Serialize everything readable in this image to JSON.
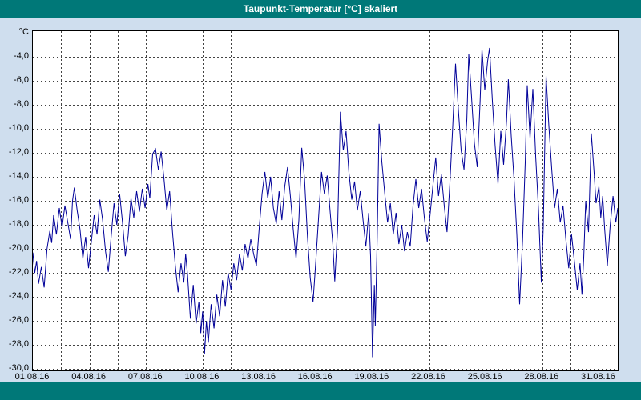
{
  "window": {
    "title": "Taupunkt-Temperatur [°C] skaliert"
  },
  "colors": {
    "titlebar": "#007878",
    "background": "#cfdeee",
    "plot_background": "#ffffff",
    "plot_border": "#000000",
    "grid": "#444444",
    "line": "#000099"
  },
  "chart_data": {
    "type": "line",
    "title": "Taupunkt-Temperatur [°C] skaliert",
    "unit_label": "°C",
    "xlabel": "",
    "ylabel": "°C",
    "grid": "dashed",
    "legend": "none",
    "xlim_days": [
      0,
      31
    ],
    "ylim": [
      -30.1,
      -1.9
    ],
    "x_tick_days": [
      0,
      3,
      6,
      9,
      12,
      15,
      18,
      21,
      24,
      27,
      30
    ],
    "x_tick_labels": [
      "01.08.16",
      "04.08.16",
      "07.08.16",
      "10.08.16",
      "13.08.16",
      "16.08.16",
      "19.08.16",
      "22.08.16",
      "25.08.16",
      "28.08.16",
      "31.08.16"
    ],
    "x_grid_step_days": 1.5,
    "y_tick_values": [
      -4,
      -6,
      -8,
      -10,
      -12,
      -14,
      -16,
      -18,
      -20,
      -22,
      -24,
      -26,
      -28,
      -30
    ],
    "y_tick_labels": [
      "-4,0",
      "-6,0",
      "-8,0",
      "-10,0",
      "-12,0",
      "-14,0",
      "-16,0",
      "-18,0",
      "-20,0",
      "-22,0",
      "-24,0",
      "-26,0",
      "-28,0",
      "-30,0"
    ],
    "series": [
      {
        "name": "Taupunkt-Temperatur",
        "color": "#000099",
        "points": [
          [
            0.0,
            -20.3
          ],
          [
            0.1,
            -22.0
          ],
          [
            0.2,
            -21.0
          ],
          [
            0.3,
            -22.9
          ],
          [
            0.45,
            -21.5
          ],
          [
            0.6,
            -23.2
          ],
          [
            0.75,
            -20.0
          ],
          [
            0.9,
            -18.5
          ],
          [
            1.0,
            -19.5
          ],
          [
            1.1,
            -17.2
          ],
          [
            1.25,
            -18.8
          ],
          [
            1.4,
            -16.6
          ],
          [
            1.55,
            -18.2
          ],
          [
            1.7,
            -16.4
          ],
          [
            1.85,
            -17.8
          ],
          [
            2.0,
            -19.2
          ],
          [
            2.1,
            -16.0
          ],
          [
            2.2,
            -14.9
          ],
          [
            2.35,
            -16.8
          ],
          [
            2.5,
            -18.4
          ],
          [
            2.65,
            -20.8
          ],
          [
            2.8,
            -19.0
          ],
          [
            2.95,
            -21.6
          ],
          [
            3.1,
            -19.4
          ],
          [
            3.25,
            -17.2
          ],
          [
            3.4,
            -18.8
          ],
          [
            3.55,
            -15.9
          ],
          [
            3.7,
            -17.6
          ],
          [
            3.85,
            -20.2
          ],
          [
            4.0,
            -21.9
          ],
          [
            4.15,
            -19.0
          ],
          [
            4.3,
            -16.2
          ],
          [
            4.45,
            -18.0
          ],
          [
            4.6,
            -15.4
          ],
          [
            4.75,
            -17.8
          ],
          [
            4.9,
            -20.6
          ],
          [
            5.05,
            -18.9
          ],
          [
            5.2,
            -15.8
          ],
          [
            5.35,
            -17.4
          ],
          [
            5.5,
            -15.2
          ],
          [
            5.65,
            -16.9
          ],
          [
            5.8,
            -15.0
          ],
          [
            5.95,
            -16.6
          ],
          [
            6.1,
            -14.6
          ],
          [
            6.2,
            -15.8
          ],
          [
            6.35,
            -12.1
          ],
          [
            6.5,
            -11.7
          ],
          [
            6.65,
            -13.4
          ],
          [
            6.8,
            -11.9
          ],
          [
            6.95,
            -14.2
          ],
          [
            7.1,
            -16.8
          ],
          [
            7.25,
            -15.2
          ],
          [
            7.4,
            -18.6
          ],
          [
            7.55,
            -21.4
          ],
          [
            7.7,
            -23.6
          ],
          [
            7.85,
            -21.2
          ],
          [
            8.0,
            -22.8
          ],
          [
            8.1,
            -20.4
          ],
          [
            8.2,
            -22.2
          ],
          [
            8.35,
            -25.8
          ],
          [
            8.5,
            -23.0
          ],
          [
            8.65,
            -26.2
          ],
          [
            8.8,
            -24.4
          ],
          [
            8.9,
            -27.0
          ],
          [
            9.0,
            -25.2
          ],
          [
            9.1,
            -28.7
          ],
          [
            9.2,
            -26.0
          ],
          [
            9.3,
            -27.8
          ],
          [
            9.45,
            -24.6
          ],
          [
            9.6,
            -26.6
          ],
          [
            9.75,
            -23.8
          ],
          [
            9.9,
            -25.6
          ],
          [
            10.05,
            -22.6
          ],
          [
            10.2,
            -24.8
          ],
          [
            10.35,
            -22.0
          ],
          [
            10.5,
            -23.4
          ],
          [
            10.65,
            -21.2
          ],
          [
            10.8,
            -22.6
          ],
          [
            10.95,
            -20.4
          ],
          [
            11.1,
            -21.8
          ],
          [
            11.25,
            -19.6
          ],
          [
            11.4,
            -20.8
          ],
          [
            11.55,
            -19.2
          ],
          [
            11.7,
            -20.4
          ],
          [
            11.85,
            -21.4
          ],
          [
            12.0,
            -18.2
          ],
          [
            12.15,
            -15.4
          ],
          [
            12.3,
            -13.6
          ],
          [
            12.45,
            -15.8
          ],
          [
            12.6,
            -14.0
          ],
          [
            12.75,
            -16.6
          ],
          [
            12.9,
            -17.9
          ],
          [
            13.05,
            -15.2
          ],
          [
            13.2,
            -17.6
          ],
          [
            13.35,
            -14.8
          ],
          [
            13.5,
            -13.2
          ],
          [
            13.65,
            -15.6
          ],
          [
            13.8,
            -18.4
          ],
          [
            13.95,
            -20.8
          ],
          [
            14.1,
            -17.6
          ],
          [
            14.25,
            -11.6
          ],
          [
            14.4,
            -14.2
          ],
          [
            14.55,
            -18.8
          ],
          [
            14.7,
            -22.4
          ],
          [
            14.85,
            -24.4
          ],
          [
            15.0,
            -21.0
          ],
          [
            15.15,
            -17.2
          ],
          [
            15.3,
            -13.6
          ],
          [
            15.45,
            -15.4
          ],
          [
            15.6,
            -13.9
          ],
          [
            15.75,
            -16.8
          ],
          [
            15.9,
            -19.6
          ],
          [
            16.0,
            -22.7
          ],
          [
            16.15,
            -18.4
          ],
          [
            16.3,
            -8.6
          ],
          [
            16.45,
            -11.8
          ],
          [
            16.6,
            -10.2
          ],
          [
            16.75,
            -13.6
          ],
          [
            16.9,
            -15.9
          ],
          [
            17.05,
            -14.4
          ],
          [
            17.2,
            -16.8
          ],
          [
            17.35,
            -15.2
          ],
          [
            17.5,
            -17.6
          ],
          [
            17.65,
            -19.8
          ],
          [
            17.8,
            -17.0
          ],
          [
            17.9,
            -20.6
          ],
          [
            18.0,
            -29.0
          ],
          [
            18.1,
            -23.0
          ],
          [
            18.15,
            -26.4
          ],
          [
            18.25,
            -19.0
          ],
          [
            18.35,
            -9.6
          ],
          [
            18.5,
            -12.8
          ],
          [
            18.65,
            -15.4
          ],
          [
            18.8,
            -17.8
          ],
          [
            18.95,
            -16.2
          ],
          [
            19.1,
            -18.8
          ],
          [
            19.25,
            -17.0
          ],
          [
            19.4,
            -19.6
          ],
          [
            19.55,
            -18.0
          ],
          [
            19.7,
            -20.2
          ],
          [
            19.85,
            -18.6
          ],
          [
            20.0,
            -19.8
          ],
          [
            20.15,
            -16.4
          ],
          [
            20.3,
            -14.2
          ],
          [
            20.45,
            -16.6
          ],
          [
            20.6,
            -15.0
          ],
          [
            20.75,
            -17.4
          ],
          [
            20.9,
            -19.4
          ],
          [
            21.05,
            -17.2
          ],
          [
            21.2,
            -14.8
          ],
          [
            21.35,
            -12.4
          ],
          [
            21.5,
            -15.6
          ],
          [
            21.65,
            -13.8
          ],
          [
            21.8,
            -16.4
          ],
          [
            21.95,
            -18.6
          ],
          [
            22.1,
            -14.6
          ],
          [
            22.25,
            -9.8
          ],
          [
            22.4,
            -4.6
          ],
          [
            22.55,
            -8.4
          ],
          [
            22.7,
            -11.8
          ],
          [
            22.85,
            -13.4
          ],
          [
            23.0,
            -9.2
          ],
          [
            23.1,
            -3.8
          ],
          [
            23.25,
            -7.4
          ],
          [
            23.4,
            -11.2
          ],
          [
            23.55,
            -13.2
          ],
          [
            23.7,
            -7.8
          ],
          [
            23.8,
            -3.4
          ],
          [
            23.95,
            -6.8
          ],
          [
            24.1,
            -4.4
          ],
          [
            24.2,
            -3.3
          ],
          [
            24.35,
            -7.6
          ],
          [
            24.5,
            -11.4
          ],
          [
            24.65,
            -14.6
          ],
          [
            24.8,
            -10.2
          ],
          [
            24.95,
            -13.0
          ],
          [
            25.1,
            -9.4
          ],
          [
            25.2,
            -5.9
          ],
          [
            25.35,
            -10.6
          ],
          [
            25.5,
            -14.2
          ],
          [
            25.65,
            -18.8
          ],
          [
            25.8,
            -24.6
          ],
          [
            25.95,
            -19.4
          ],
          [
            26.1,
            -12.6
          ],
          [
            26.2,
            -6.4
          ],
          [
            26.35,
            -10.8
          ],
          [
            26.5,
            -6.7
          ],
          [
            26.65,
            -12.4
          ],
          [
            26.8,
            -16.8
          ],
          [
            26.95,
            -22.8
          ],
          [
            27.05,
            -18.2
          ],
          [
            27.2,
            -5.6
          ],
          [
            27.35,
            -9.8
          ],
          [
            27.5,
            -13.4
          ],
          [
            27.65,
            -16.6
          ],
          [
            27.8,
            -15.0
          ],
          [
            27.95,
            -17.8
          ],
          [
            28.1,
            -16.4
          ],
          [
            28.25,
            -19.2
          ],
          [
            28.4,
            -21.6
          ],
          [
            28.55,
            -18.8
          ],
          [
            28.7,
            -21.0
          ],
          [
            28.85,
            -23.4
          ],
          [
            29.0,
            -21.2
          ],
          [
            29.1,
            -23.8
          ],
          [
            29.2,
            -20.6
          ],
          [
            29.3,
            -16.0
          ],
          [
            29.45,
            -18.6
          ],
          [
            29.6,
            -10.4
          ],
          [
            29.75,
            -13.8
          ],
          [
            29.85,
            -16.2
          ],
          [
            30.0,
            -14.8
          ],
          [
            30.1,
            -17.4
          ],
          [
            30.2,
            -15.6
          ],
          [
            30.3,
            -18.2
          ],
          [
            30.45,
            -21.4
          ],
          [
            30.6,
            -18.0
          ],
          [
            30.75,
            -15.6
          ],
          [
            30.9,
            -17.8
          ],
          [
            31.0,
            -16.6
          ]
        ]
      }
    ]
  }
}
